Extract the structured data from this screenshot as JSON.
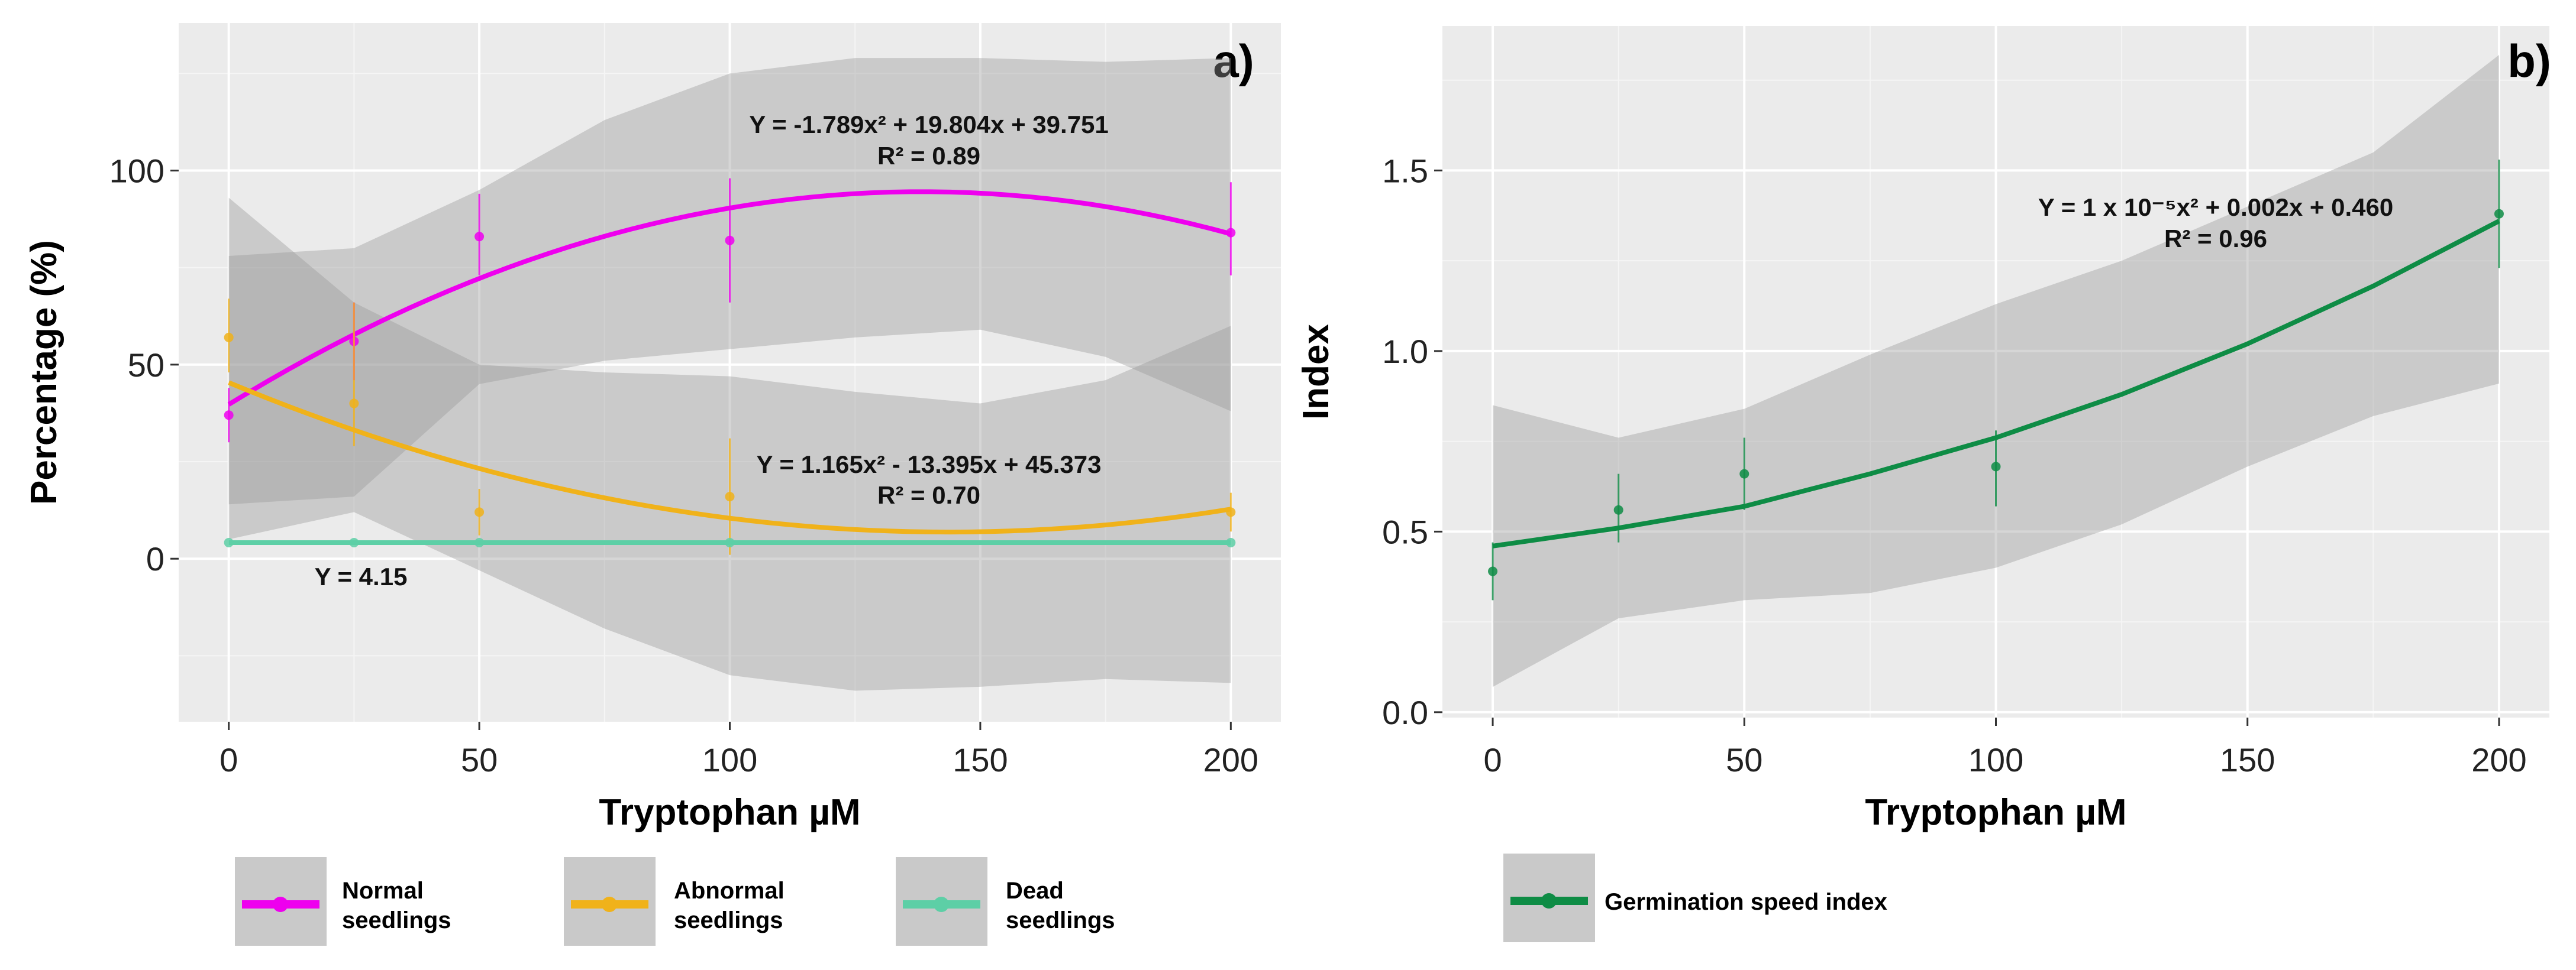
{
  "chart_data": [
    {
      "type": "line",
      "panel_label": "a)",
      "xlabel": "Tryptophan µM",
      "ylabel": "Percentage (%)",
      "xlim": [
        -10,
        210
      ],
      "ylim": [
        -42,
        138
      ],
      "xticks": [
        0,
        50,
        100,
        150,
        200
      ],
      "yticks": [
        0,
        50,
        100
      ],
      "grid": true,
      "x": [
        0,
        25,
        50,
        100,
        200
      ],
      "series": [
        {
          "name": "Normal seedlings",
          "color": "#ee00ee",
          "values": [
            37,
            56,
            83,
            82,
            84
          ],
          "error_low": [
            30,
            46,
            73,
            66,
            73
          ],
          "error_high": [
            44,
            66,
            94,
            98,
            97
          ],
          "fit": {
            "a": -1.789,
            "b": 19.804,
            "c": 39.751,
            "x_divisor": 25
          },
          "ci_x": [
            0,
            25,
            50,
            75,
            100,
            125,
            150,
            175,
            200
          ],
          "ci_upper": [
            78,
            80,
            95,
            113,
            125,
            129,
            129,
            128,
            129
          ],
          "ci_lower": [
            14,
            16,
            45,
            51,
            54,
            57,
            59,
            52,
            38
          ],
          "equation": "Y = -1.789x² + 19.804x + 39.751",
          "r2": "R² = 0.89"
        },
        {
          "name": "Abnormal seedlings",
          "color": "#f0b21a",
          "values": [
            57,
            40,
            12,
            16,
            12
          ],
          "error_low": [
            48,
            29,
            6,
            1,
            7
          ],
          "error_high": [
            67,
            66,
            18,
            31,
            17
          ],
          "fit": {
            "a": 1.165,
            "b": -13.395,
            "c": 45.373,
            "x_divisor": 25
          },
          "ci_x": [
            0,
            25,
            50,
            75,
            100,
            125,
            150,
            175,
            200
          ],
          "ci_upper": [
            93,
            66,
            50,
            48,
            47,
            43,
            40,
            46,
            60
          ],
          "ci_lower": [
            5,
            12,
            -3,
            -18,
            -30,
            -34,
            -33,
            -31,
            -32
          ],
          "equation": "Y = 1.165x² - 13.395x + 45.373",
          "r2": "R² = 0.70"
        },
        {
          "name": "Dead seedlings",
          "color": "#5dcfa6",
          "values": [
            4.15,
            4.15,
            4.15,
            4.15,
            4.15
          ],
          "constant": 4.15,
          "equation": "Y = 4.15"
        }
      ],
      "legend": [
        {
          "label_line1": "Normal",
          "label_line2": "seedlings",
          "color": "#ee00ee"
        },
        {
          "label_line1": "Abnormal",
          "label_line2": "seedlings",
          "color": "#f0b21a"
        },
        {
          "label_line1": "Dead",
          "label_line2": "seedlings",
          "color": "#5dcfa6"
        }
      ],
      "legend_position": "bottom"
    },
    {
      "type": "line",
      "panel_label": "b)",
      "xlabel": "Tryptophan µM",
      "ylabel": "Index",
      "xlim": [
        -10,
        210
      ],
      "ylim": [
        -0.015,
        1.9
      ],
      "xticks": [
        0,
        50,
        100,
        150,
        200
      ],
      "yticks": [
        0.0,
        0.5,
        1.0,
        1.5
      ],
      "ytick_labels": [
        "0.0",
        "0.5",
        "1.0",
        "1.5"
      ],
      "grid": true,
      "x": [
        0,
        25,
        50,
        100,
        200
      ],
      "series": [
        {
          "name": "Germination speed index",
          "color": "#0e8c45",
          "values": [
            0.39,
            0.56,
            0.66,
            0.68,
            1.38
          ],
          "error_low": [
            0.31,
            0.47,
            0.56,
            0.57,
            1.23
          ],
          "error_high": [
            0.47,
            0.66,
            0.76,
            0.78,
            1.53
          ],
          "fit_x": [
            0,
            25,
            50,
            75,
            100,
            125,
            150,
            175,
            200
          ],
          "fit_y": [
            0.46,
            0.51,
            0.57,
            0.66,
            0.76,
            0.88,
            1.02,
            1.18,
            1.36
          ],
          "ci_x": [
            0,
            25,
            50,
            75,
            100,
            125,
            150,
            175,
            200
          ],
          "ci_upper": [
            0.85,
            0.76,
            0.84,
            0.99,
            1.13,
            1.25,
            1.4,
            1.55,
            1.82
          ],
          "ci_lower": [
            0.07,
            0.26,
            0.31,
            0.33,
            0.4,
            0.52,
            0.68,
            0.82,
            0.91
          ],
          "equation": "Y = 1 x 10⁻⁵x² + 0.002x + 0.460",
          "r2": "R² = 0.96"
        }
      ],
      "legend": [
        {
          "label_line1": "Germination speed index",
          "color": "#0e8c45"
        }
      ],
      "legend_position": "bottom"
    }
  ]
}
